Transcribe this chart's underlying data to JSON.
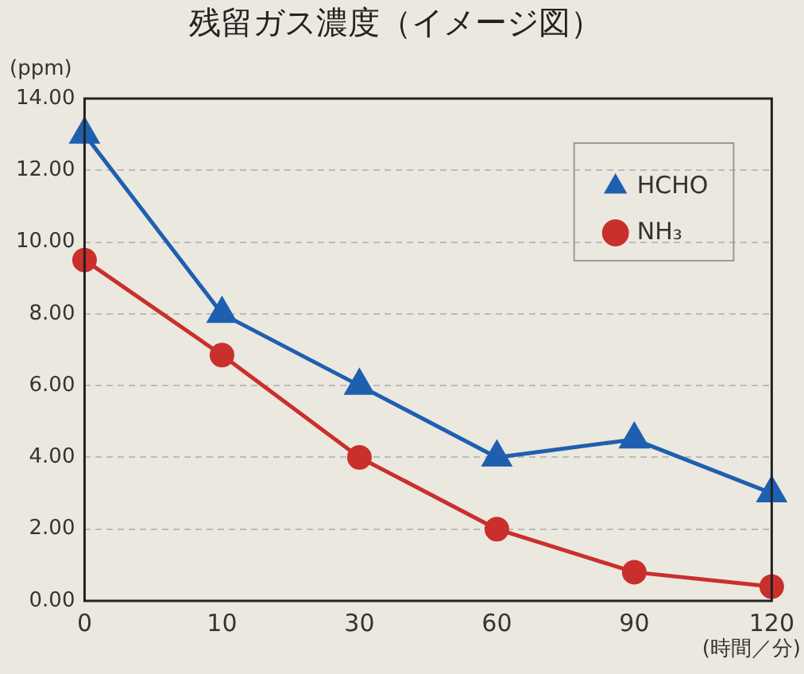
{
  "chart_data": {
    "type": "line",
    "title": "残留ガス濃度（イメージ図）",
    "ylabel": "(ppm)",
    "xlabel": "(時間／分)",
    "categories": [
      "0",
      "10",
      "30",
      "60",
      "90",
      "120"
    ],
    "series": [
      {
        "name": "HCHO",
        "color": "#1f5fb0",
        "marker": "triangle",
        "values": [
          13,
          8,
          6,
          4,
          4.5,
          3
        ]
      },
      {
        "name": "NH₃",
        "color": "#c9302c",
        "marker": "circle",
        "values": [
          9.5,
          6.85,
          4,
          2,
          0.8,
          0.4
        ]
      }
    ],
    "ylim": [
      0,
      14
    ],
    "yticks": [
      {
        "value": 0,
        "label": "0.00"
      },
      {
        "value": 2,
        "label": "2.00"
      },
      {
        "value": 4,
        "label": "4.00"
      },
      {
        "value": 6,
        "label": "6.00"
      },
      {
        "value": 8,
        "label": "8.00"
      },
      {
        "value": 10,
        "label": "10.00"
      },
      {
        "value": 12,
        "label": "12.00"
      },
      {
        "value": 14,
        "label": "14.00"
      }
    ],
    "grid": "y",
    "legend": "top right",
    "line_style": "solid"
  }
}
